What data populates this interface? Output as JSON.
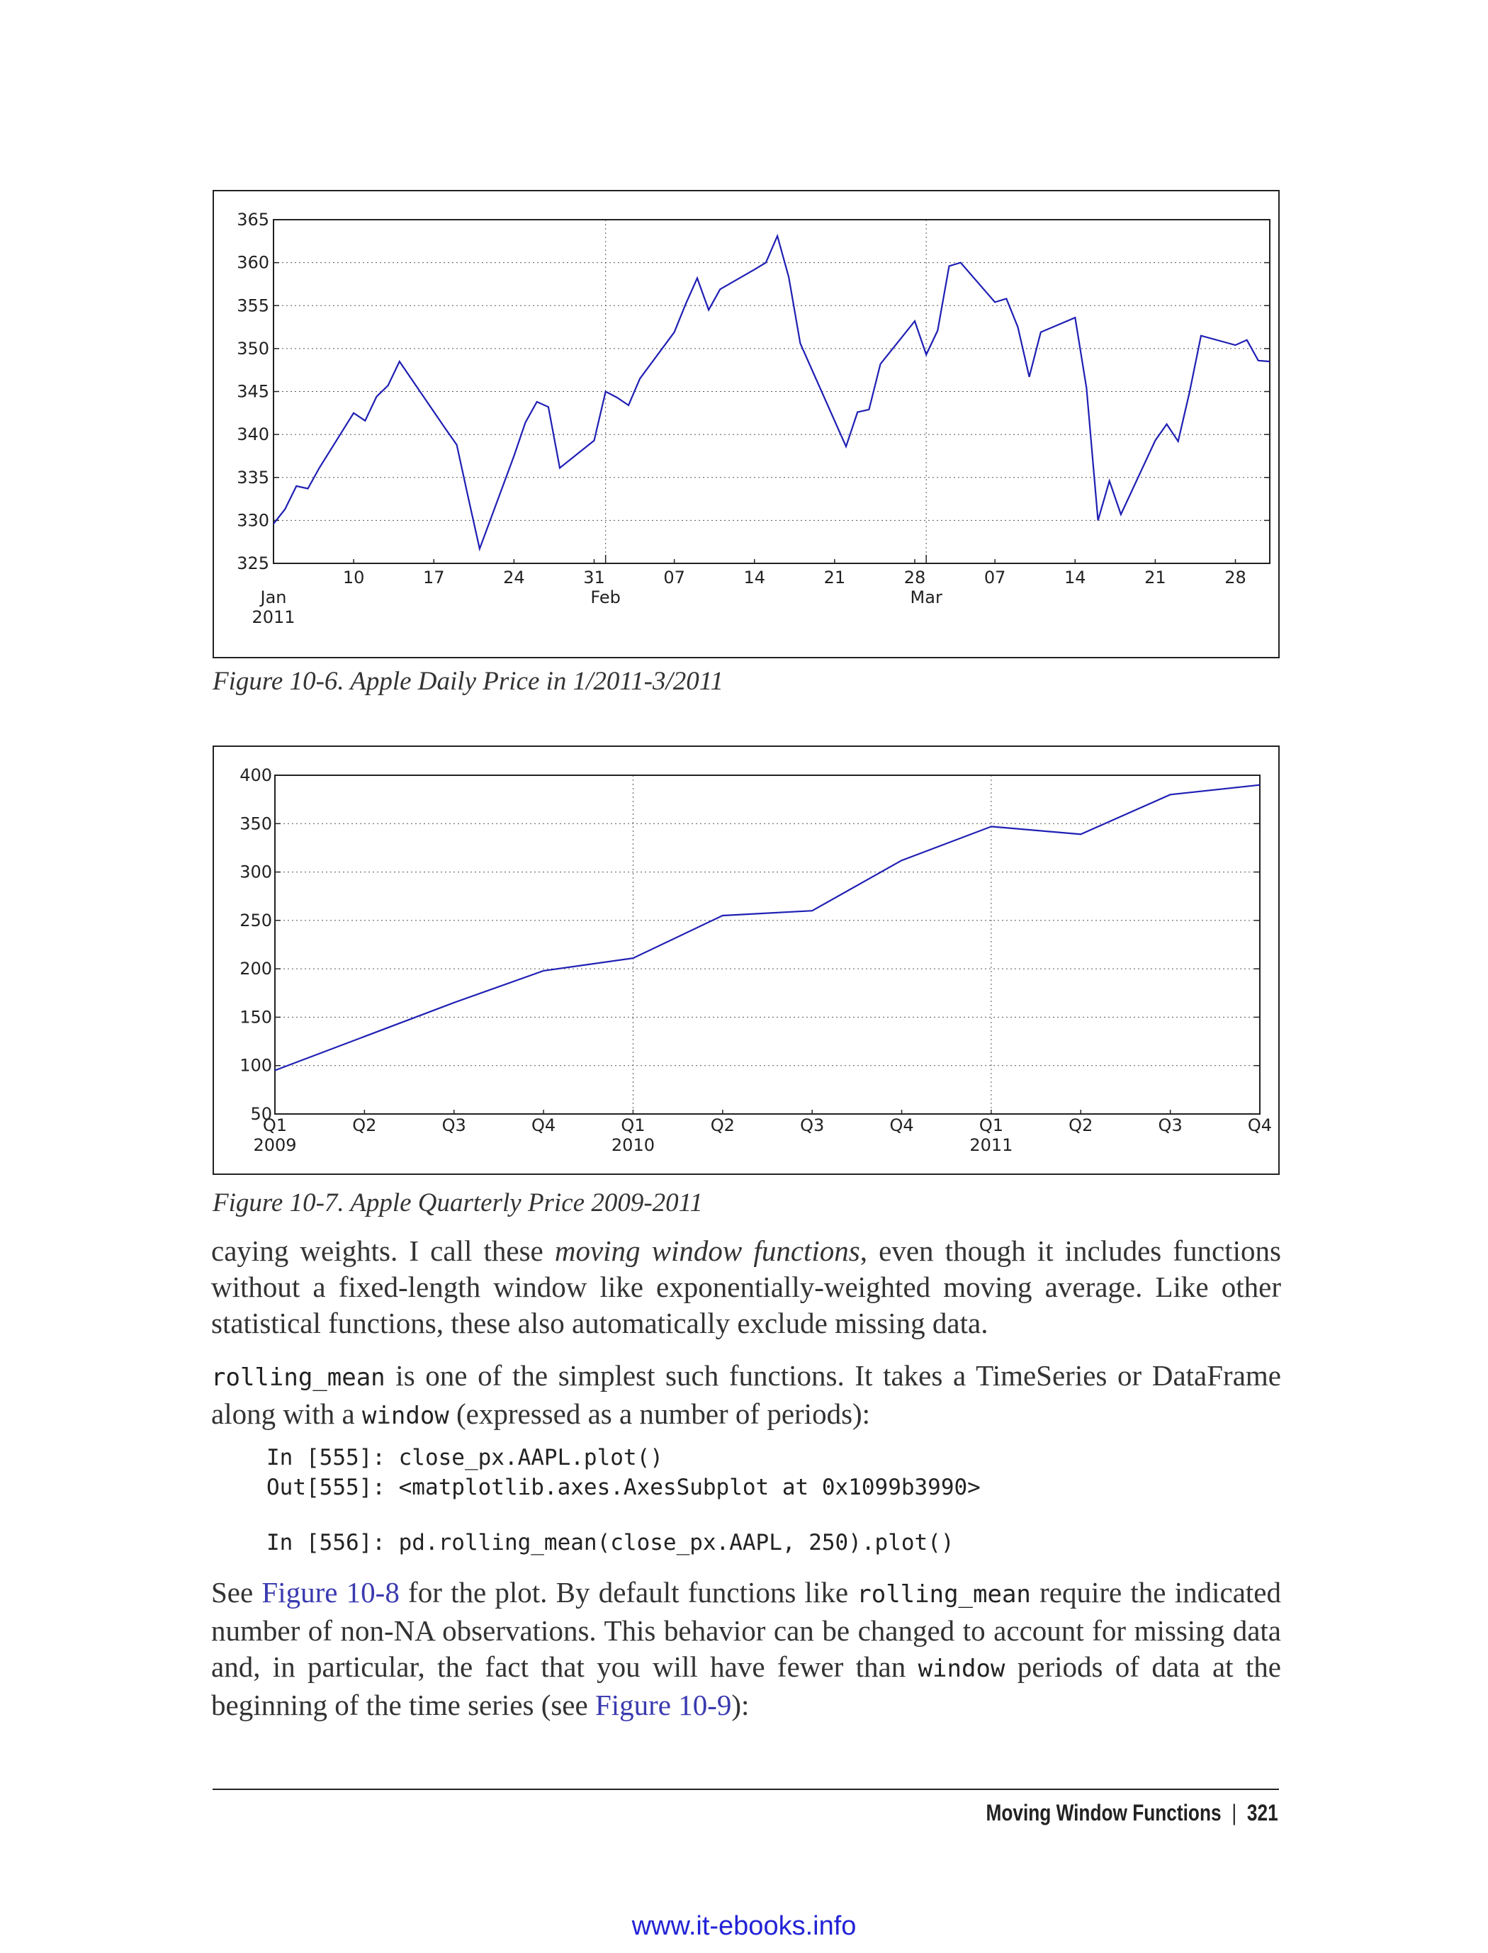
{
  "figures": [
    {
      "caption": "Figure 10-6. Apple Daily Price in 1/2011-3/2011",
      "line_color": "#1f1fb4"
    },
    {
      "caption": "Figure 10-7. Apple Quarterly Price 2009-2011",
      "line_color": "#1f1fb4"
    }
  ],
  "chart_data": [
    {
      "type": "line",
      "title": "",
      "xlabel": "",
      "ylabel": "",
      "ylim": [
        325,
        365
      ],
      "yticks": [
        325,
        330,
        335,
        340,
        345,
        350,
        355,
        360,
        365
      ],
      "xlim": [
        "2011-01-03",
        "2011-03-31"
      ],
      "grid": true,
      "xtick_labels": [
        {
          "date": "2011-01-10",
          "label": "10"
        },
        {
          "date": "2011-01-17",
          "label": "17"
        },
        {
          "date": "2011-01-24",
          "label": "24"
        },
        {
          "date": "2011-01-31",
          "label": "31"
        },
        {
          "date": "2011-02-07",
          "label": "07"
        },
        {
          "date": "2011-02-14",
          "label": "14"
        },
        {
          "date": "2011-02-21",
          "label": "21"
        },
        {
          "date": "2011-02-28",
          "label": "28"
        },
        {
          "date": "2011-03-07",
          "label": "07"
        },
        {
          "date": "2011-03-14",
          "label": "14"
        },
        {
          "date": "2011-03-21",
          "label": "21"
        },
        {
          "date": "2011-03-28",
          "label": "28"
        }
      ],
      "major_labels": [
        {
          "date": "2011-01-03",
          "label": "Jan",
          "sublabel": "2011"
        },
        {
          "date": "2011-02-01",
          "label": "Feb",
          "sublabel": ""
        },
        {
          "date": "2011-03-01",
          "label": "Mar",
          "sublabel": ""
        }
      ],
      "series": [
        {
          "x": [
            "2011-01-03",
            "2011-01-04",
            "2011-01-05",
            "2011-01-06",
            "2011-01-07",
            "2011-01-10",
            "2011-01-11",
            "2011-01-12",
            "2011-01-13",
            "2011-01-14",
            "2011-01-18",
            "2011-01-19",
            "2011-01-20",
            "2011-01-21",
            "2011-01-24",
            "2011-01-25",
            "2011-01-26",
            "2011-01-27",
            "2011-01-28",
            "2011-01-31",
            "2011-02-01",
            "2011-02-02",
            "2011-02-03",
            "2011-02-04",
            "2011-02-07",
            "2011-02-08",
            "2011-02-09",
            "2011-02-10",
            "2011-02-11",
            "2011-02-14",
            "2011-02-15",
            "2011-02-16",
            "2011-02-17",
            "2011-02-18",
            "2011-02-22",
            "2011-02-23",
            "2011-02-24",
            "2011-02-25",
            "2011-02-28",
            "2011-03-01",
            "2011-03-02",
            "2011-03-03",
            "2011-03-04",
            "2011-03-07",
            "2011-03-08",
            "2011-03-09",
            "2011-03-10",
            "2011-03-11",
            "2011-03-14",
            "2011-03-15",
            "2011-03-16",
            "2011-03-17",
            "2011-03-18",
            "2011-03-21",
            "2011-03-22",
            "2011-03-23",
            "2011-03-24",
            "2011-03-25",
            "2011-03-28",
            "2011-03-29",
            "2011-03-30",
            "2011-03-31"
          ],
          "values": [
            329.6,
            331.3,
            334.0,
            333.7,
            336.1,
            342.5,
            341.6,
            344.4,
            345.7,
            348.5,
            340.7,
            338.8,
            332.7,
            326.7,
            337.5,
            341.4,
            343.8,
            343.2,
            336.1,
            339.3,
            345.0,
            344.3,
            343.4,
            346.5,
            351.9,
            355.2,
            358.2,
            354.5,
            356.9,
            359.2,
            360.0,
            363.1,
            358.3,
            350.6,
            338.6,
            342.6,
            342.9,
            348.2,
            353.2,
            349.3,
            352.1,
            359.6,
            360.0,
            355.4,
            355.8,
            352.5,
            346.7,
            351.9,
            353.6,
            345.4,
            330.0,
            334.6,
            330.7,
            339.3,
            341.2,
            339.2,
            344.97,
            351.5,
            350.4,
            351.0,
            348.6,
            348.5
          ]
        }
      ]
    },
    {
      "type": "line",
      "title": "",
      "xlabel": "",
      "ylabel": "",
      "ylim": [
        50,
        400
      ],
      "yticks": [
        50,
        100,
        150,
        200,
        250,
        300,
        350,
        400
      ],
      "grid": true,
      "categories": [
        "Q1",
        "Q2",
        "Q3",
        "Q4",
        "Q1",
        "Q2",
        "Q3",
        "Q4",
        "Q1",
        "Q2",
        "Q3",
        "Q4"
      ],
      "year_labels": [
        {
          "index": 0,
          "label": "2009"
        },
        {
          "index": 4,
          "label": "2010"
        },
        {
          "index": 8,
          "label": "2011"
        }
      ],
      "series": [
        {
          "values": [
            95,
            130,
            165,
            198,
            211,
            255,
            260,
            312,
            347,
            339,
            380,
            390
          ]
        }
      ]
    }
  ],
  "body": {
    "para1": {
      "t1": "caying weights. I call these ",
      "em": "moving window functions",
      "t2": ", even though it includes functions without a fixed-length window like exponentially-weighted moving average. Like other statistical functions, these also automatically exclude missing data."
    },
    "para2": {
      "code1": "rolling_mean",
      "t1": " is one of the simplest such functions. It takes a TimeSeries or DataFrame along with a ",
      "code2": "window",
      "t2": " (expressed as a number of periods):"
    },
    "code_block": {
      "line1": "In [555]: close_px.AAPL.plot()",
      "line2": "Out[555]: <matplotlib.axes.AxesSubplot at 0x1099b3990>",
      "line3": "In [556]: pd.rolling_mean(close_px.AAPL, 250).plot()"
    },
    "para3": {
      "t1": "See ",
      "link1": "Figure 10-8",
      "t2": " for the plot. By default functions like ",
      "code1": "rolling_mean",
      "t3": " require the indicated number of non-NA observations. This behavior can be changed to account for missing data and, in particular, the fact that you will have fewer than ",
      "code2": "window",
      "t4": " periods of data at the beginning of the time series (see ",
      "link2": "Figure 10-9",
      "t5": "):"
    }
  },
  "footer": {
    "section": "Moving Window Functions",
    "separator": "|",
    "page": "321"
  },
  "watermark": "www.it-ebooks.info"
}
